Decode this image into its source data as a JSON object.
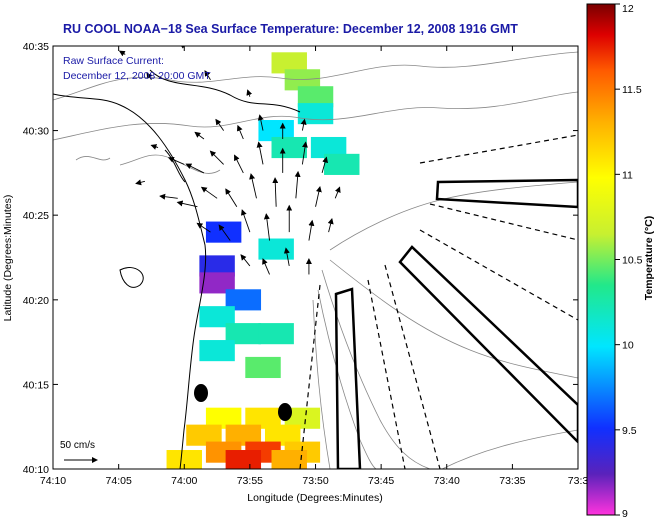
{
  "chart_data": {
    "type": "heatmap",
    "title": "RU COOL  NOAA−18  Sea Surface Temperature:  December 12, 2008 1916 GMT",
    "subtitle_line1": "Raw Surface Current:",
    "subtitle_line2": "December 12, 2008 20:00 GMT",
    "xlabel": "Longitude (Degrees:Minutes)",
    "ylabel": "Latitude (Degrees:Minutes)",
    "xlim": [
      -74.1667,
      -73.5
    ],
    "ylim": [
      40.1667,
      40.5833
    ],
    "x_ticks": [
      {
        "value": -74.1667,
        "label": "74:10"
      },
      {
        "value": -74.0833,
        "label": "74:05"
      },
      {
        "value": -74.0,
        "label": "74:00"
      },
      {
        "value": -73.9167,
        "label": "73:55"
      },
      {
        "value": -73.8333,
        "label": "73:50"
      },
      {
        "value": -73.75,
        "label": "73:45"
      },
      {
        "value": -73.6667,
        "label": "73:40"
      },
      {
        "value": -73.5833,
        "label": "73:35"
      },
      {
        "value": -73.5,
        "label": "73:3"
      }
    ],
    "y_ticks": [
      {
        "value": 40.1667,
        "label": "40:10"
      },
      {
        "value": 40.25,
        "label": "40:15"
      },
      {
        "value": 40.3333,
        "label": "40:20"
      },
      {
        "value": 40.4167,
        "label": "40:25"
      },
      {
        "value": 40.5,
        "label": "40:30"
      },
      {
        "value": 40.5833,
        "label": "40:35"
      }
    ],
    "colorbar": {
      "label": "Temperature (°C)",
      "range": [
        9,
        12
      ],
      "ticks": [
        {
          "value": 9,
          "label": "9"
        },
        {
          "value": 9.5,
          "label": "9.5"
        },
        {
          "value": 10,
          "label": "10"
        },
        {
          "value": 10.5,
          "label": "10.5"
        },
        {
          "value": 11,
          "label": "11"
        },
        {
          "value": 11.5,
          "label": "11.5"
        },
        {
          "value": 12,
          "label": "12"
        }
      ],
      "colors": [
        "#ff33dd",
        "#5a22bb",
        "#1030ff",
        "#00e6ff",
        "#22e88a",
        "#c8f030",
        "#ffff00",
        "#ffb000",
        "#ff5a00",
        "#dd0000",
        "#7a0000"
      ]
    },
    "sst_cells": [
      {
        "lon": -73.8667,
        "lat": 40.5667,
        "t": 10.5
      },
      {
        "lon": -73.85,
        "lat": 40.55,
        "t": 10.4
      },
      {
        "lon": -73.8333,
        "lat": 40.5333,
        "t": 10.3
      },
      {
        "lon": -73.8333,
        "lat": 40.5167,
        "t": 10.0
      },
      {
        "lon": -73.8833,
        "lat": 40.5,
        "t": 9.9
      },
      {
        "lon": -73.8667,
        "lat": 40.4833,
        "t": 10.1
      },
      {
        "lon": -73.8167,
        "lat": 40.4833,
        "t": 10.0
      },
      {
        "lon": -73.8,
        "lat": 40.4667,
        "t": 10.1
      },
      {
        "lon": -73.95,
        "lat": 40.4,
        "t": 9.6
      },
      {
        "lon": -73.8833,
        "lat": 40.3833,
        "t": 10.0
      },
      {
        "lon": -73.9583,
        "lat": 40.3667,
        "t": 9.5
      },
      {
        "lon": -73.9583,
        "lat": 40.35,
        "t": 9.2
      },
      {
        "lon": -73.925,
        "lat": 40.3333,
        "t": 9.7
      },
      {
        "lon": -73.9583,
        "lat": 40.3167,
        "t": 10.0
      },
      {
        "lon": -73.925,
        "lat": 40.3,
        "t": 10.1
      },
      {
        "lon": -73.8833,
        "lat": 40.3,
        "t": 10.1
      },
      {
        "lon": -73.9583,
        "lat": 40.2833,
        "t": 10.0
      },
      {
        "lon": -73.9,
        "lat": 40.2667,
        "t": 10.3
      },
      {
        "lon": -73.95,
        "lat": 40.2167,
        "t": 10.8
      },
      {
        "lon": -73.9,
        "lat": 40.2167,
        "t": 10.9
      },
      {
        "lon": -73.85,
        "lat": 40.2167,
        "t": 10.6
      },
      {
        "lon": -73.975,
        "lat": 40.2,
        "t": 11.0
      },
      {
        "lon": -73.925,
        "lat": 40.2,
        "t": 11.1
      },
      {
        "lon": -73.875,
        "lat": 40.2,
        "t": 10.9
      },
      {
        "lon": -73.95,
        "lat": 40.1833,
        "t": 11.2
      },
      {
        "lon": -73.9,
        "lat": 40.1833,
        "t": 11.5
      },
      {
        "lon": -73.85,
        "lat": 40.1833,
        "t": 11.0
      },
      {
        "lon": -74.0,
        "lat": 40.175,
        "t": 10.9
      },
      {
        "lon": -73.925,
        "lat": 40.175,
        "t": 11.6
      },
      {
        "lon": -73.8667,
        "lat": 40.175,
        "t": 11.1
      }
    ],
    "current_vectors": [
      {
        "lon": -73.975,
        "lat": 40.4917,
        "u": -8,
        "v": 6
      },
      {
        "lon": -73.95,
        "lat": 40.5,
        "u": -7,
        "v": 10
      },
      {
        "lon": -73.925,
        "lat": 40.4917,
        "u": -5,
        "v": 12
      },
      {
        "lon": -73.9,
        "lat": 40.5,
        "u": -3,
        "v": 14
      },
      {
        "lon": -73.875,
        "lat": 40.4917,
        "u": 0,
        "v": 14
      },
      {
        "lon": -73.85,
        "lat": 40.5,
        "u": 2,
        "v": 10
      },
      {
        "lon": -74.0,
        "lat": 40.4667,
        "u": -14,
        "v": 6
      },
      {
        "lon": -73.975,
        "lat": 40.4583,
        "u": -16,
        "v": 8
      },
      {
        "lon": -73.95,
        "lat": 40.4667,
        "u": -12,
        "v": 12
      },
      {
        "lon": -73.925,
        "lat": 40.4583,
        "u": -8,
        "v": 16
      },
      {
        "lon": -73.9,
        "lat": 40.4667,
        "u": -4,
        "v": 20
      },
      {
        "lon": -73.875,
        "lat": 40.4583,
        "u": 0,
        "v": 22
      },
      {
        "lon": -73.85,
        "lat": 40.4667,
        "u": 3,
        "v": 20
      },
      {
        "lon": -73.825,
        "lat": 40.4583,
        "u": 4,
        "v": 14
      },
      {
        "lon": -74.0083,
        "lat": 40.4333,
        "u": -16,
        "v": 2
      },
      {
        "lon": -73.9833,
        "lat": 40.425,
        "u": -18,
        "v": 4
      },
      {
        "lon": -73.9583,
        "lat": 40.4333,
        "u": -14,
        "v": 10
      },
      {
        "lon": -73.9333,
        "lat": 40.425,
        "u": -10,
        "v": 16
      },
      {
        "lon": -73.9083,
        "lat": 40.4333,
        "u": -5,
        "v": 22
      },
      {
        "lon": -73.8833,
        "lat": 40.425,
        "u": -1,
        "v": 26
      },
      {
        "lon": -73.8583,
        "lat": 40.4333,
        "u": 2,
        "v": 24
      },
      {
        "lon": -73.8333,
        "lat": 40.425,
        "u": 4,
        "v": 18
      },
      {
        "lon": -73.8083,
        "lat": 40.4333,
        "u": 4,
        "v": 10
      },
      {
        "lon": -73.9667,
        "lat": 40.4,
        "u": -12,
        "v": 8
      },
      {
        "lon": -73.9417,
        "lat": 40.3917,
        "u": -10,
        "v": 14
      },
      {
        "lon": -73.9167,
        "lat": 40.4,
        "u": -7,
        "v": 20
      },
      {
        "lon": -73.8917,
        "lat": 40.3917,
        "u": -3,
        "v": 24
      },
      {
        "lon": -73.8667,
        "lat": 40.4,
        "u": 0,
        "v": 24
      },
      {
        "lon": -73.8417,
        "lat": 40.3917,
        "u": 3,
        "v": 18
      },
      {
        "lon": -73.8167,
        "lat": 40.4,
        "u": 3,
        "v": 12
      },
      {
        "lon": -73.9167,
        "lat": 40.3667,
        "u": -8,
        "v": 10
      },
      {
        "lon": -73.8917,
        "lat": 40.3583,
        "u": -6,
        "v": 14
      },
      {
        "lon": -73.8667,
        "lat": 40.3667,
        "u": -3,
        "v": 16
      },
      {
        "lon": -73.8417,
        "lat": 40.3583,
        "u": 0,
        "v": 14
      },
      {
        "lon": -74.0333,
        "lat": 40.4833,
        "u": -6,
        "v": 2
      },
      {
        "lon": -74.05,
        "lat": 40.45,
        "u": -8,
        "v": -2
      },
      {
        "lon": -74.0417,
        "lat": 40.55,
        "u": -4,
        "v": 6
      },
      {
        "lon": -73.9667,
        "lat": 40.55,
        "u": -5,
        "v": 8
      },
      {
        "lon": -73.9167,
        "lat": 40.5333,
        "u": -2,
        "v": 6
      },
      {
        "lon": -74.075,
        "lat": 40.575,
        "u": -5,
        "v": 3
      },
      {
        "lon": -74.0,
        "lat": 40.5833,
        "u": -4,
        "v": 2
      }
    ],
    "vector_scale": {
      "label": "50 cm/s",
      "speed": 50
    },
    "annotations": [
      "Shipping lanes (outlined)",
      "Coastline contours"
    ]
  }
}
